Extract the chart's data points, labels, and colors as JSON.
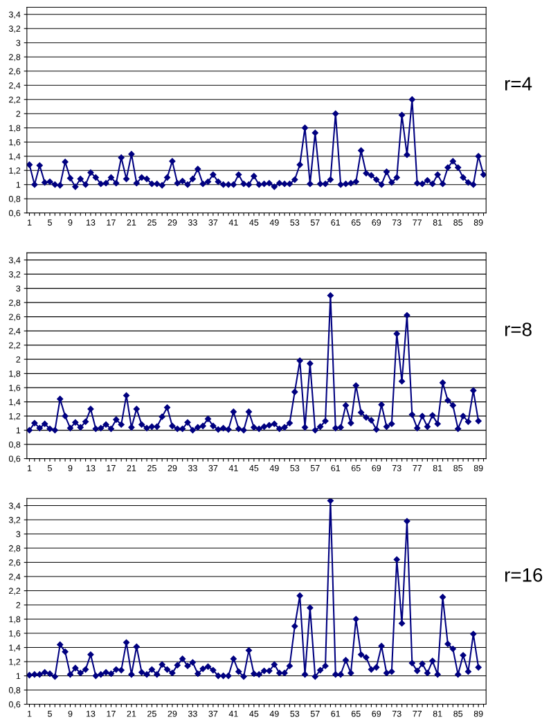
{
  "chart_data": [
    {
      "type": "line",
      "annotations": [
        "r=4"
      ],
      "categories": [
        "1",
        null,
        null,
        null,
        "5",
        null,
        null,
        null,
        "9",
        null,
        null,
        null,
        "13",
        null,
        null,
        null,
        "17",
        null,
        null,
        null,
        "21",
        null,
        null,
        null,
        "25",
        null,
        null,
        null,
        "29",
        null,
        null,
        null,
        "33",
        null,
        null,
        null,
        "37",
        null,
        null,
        null,
        "41",
        null,
        null,
        null,
        "45",
        null,
        null,
        null,
        "49",
        null,
        null,
        null,
        "53",
        null,
        null,
        null,
        "57",
        null,
        null,
        null,
        "61",
        null,
        null,
        null,
        "65",
        null,
        null,
        null,
        "69",
        null,
        null,
        null,
        "73",
        null,
        null,
        null,
        "77",
        null,
        null,
        null,
        "81",
        null,
        null,
        null,
        "85",
        null,
        null,
        null,
        "89",
        null
      ],
      "series": [
        {
          "color": "#000080",
          "values": [
            1.28,
            1.0,
            1.27,
            1.03,
            1.04,
            1.0,
            0.99,
            1.32,
            1.09,
            0.97,
            1.08,
            1.0,
            1.17,
            1.1,
            1.01,
            1.02,
            1.1,
            1.02,
            1.38,
            1.08,
            1.43,
            1.02,
            1.1,
            1.08,
            1.01,
            1.01,
            0.99,
            1.1,
            1.33,
            1.02,
            1.05,
            1.0,
            1.08,
            1.22,
            1.01,
            1.04,
            1.14,
            1.04,
            1.0,
            1.0,
            1.0,
            1.14,
            1.01,
            1.0,
            1.12,
            1.0,
            1.01,
            1.02,
            0.97,
            1.02,
            1.01,
            1.01,
            1.07,
            1.28,
            1.8,
            1.01,
            1.73,
            1.01,
            1.01,
            1.07,
            2.0,
            1.0,
            1.01,
            1.02,
            1.04,
            1.48,
            1.16,
            1.13,
            1.07,
            1.0,
            1.18,
            1.03,
            1.1,
            1.98,
            1.42,
            2.2,
            1.02,
            1.01,
            1.06,
            1.01,
            1.14,
            1.01,
            1.24,
            1.33,
            1.24,
            1.1,
            1.03,
            1.0,
            1.4,
            1.14
          ]
        }
      ],
      "ylim": [
        0.6,
        3.5
      ],
      "yticks": [
        {
          "value": 0.6,
          "label": "0,6"
        },
        {
          "value": 0.8,
          "label": "0,8"
        },
        1,
        {
          "value": 1.2,
          "label": "1,2"
        },
        {
          "value": 1.4,
          "label": "1,4"
        },
        {
          "value": 1.6,
          "label": "1,6"
        },
        {
          "value": 1.8,
          "label": "1,8"
        },
        2,
        {
          "value": 2.2,
          "label": "2,2"
        },
        {
          "value": 2.4,
          "label": "2,4"
        },
        {
          "value": 2.6,
          "label": "2,6"
        },
        {
          "value": 2.8,
          "label": "2,8"
        },
        3,
        {
          "value": 3.2,
          "label": "3,2"
        },
        {
          "value": 3.4,
          "label": "3,4"
        }
      ],
      "grid": "y",
      "marker": "diamond",
      "line_style": "solid"
    },
    {
      "type": "line",
      "annotations": [
        "r=8"
      ],
      "categories": [
        "1",
        null,
        null,
        null,
        "5",
        null,
        null,
        null,
        "9",
        null,
        null,
        null,
        "13",
        null,
        null,
        null,
        "17",
        null,
        null,
        null,
        "21",
        null,
        null,
        null,
        "25",
        null,
        null,
        null,
        "29",
        null,
        null,
        null,
        "33",
        null,
        null,
        null,
        "37",
        null,
        null,
        null,
        "41",
        null,
        null,
        null,
        "45",
        null,
        null,
        null,
        "49",
        null,
        null,
        null,
        "53",
        null,
        null,
        null,
        "57",
        null,
        null,
        null,
        "61",
        null,
        null,
        null,
        "65",
        null,
        null,
        null,
        "69",
        null,
        null,
        null,
        "73",
        null,
        null,
        null,
        "77",
        null,
        null,
        null,
        "81",
        null,
        null,
        null,
        "85",
        null,
        null,
        null,
        "89",
        null
      ],
      "series": [
        {
          "color": "#000080",
          "values": [
            1.0,
            1.1,
            1.03,
            1.09,
            1.02,
            1.0,
            1.44,
            1.2,
            1.03,
            1.11,
            1.04,
            1.12,
            1.3,
            1.02,
            1.03,
            1.08,
            1.02,
            1.15,
            1.08,
            1.49,
            1.04,
            1.3,
            1.08,
            1.03,
            1.05,
            1.05,
            1.19,
            1.32,
            1.06,
            1.02,
            1.02,
            1.11,
            1.0,
            1.04,
            1.06,
            1.16,
            1.06,
            1.01,
            1.03,
            1.01,
            1.26,
            1.02,
            1.0,
            1.26,
            1.04,
            1.02,
            1.05,
            1.07,
            1.09,
            1.02,
            1.04,
            1.1,
            1.54,
            1.98,
            1.04,
            1.94,
            1.0,
            1.05,
            1.13,
            2.9,
            1.03,
            1.04,
            1.35,
            1.1,
            1.63,
            1.25,
            1.18,
            1.14,
            1.01,
            1.36,
            1.05,
            1.09,
            2.36,
            1.69,
            2.62,
            1.22,
            1.03,
            1.2,
            1.05,
            1.21,
            1.09,
            1.67,
            1.42,
            1.35,
            1.02,
            1.2,
            1.12,
            1.56,
            1.13,
            null
          ]
        }
      ],
      "ylim": [
        0.6,
        3.5
      ],
      "yticks": [
        {
          "value": 0.6,
          "label": "0,6"
        },
        {
          "value": 0.8,
          "label": "0,8"
        },
        1,
        {
          "value": 1.2,
          "label": "1,2"
        },
        {
          "value": 1.4,
          "label": "1,4"
        },
        {
          "value": 1.6,
          "label": "1,6"
        },
        {
          "value": 1.8,
          "label": "1,8"
        },
        2,
        {
          "value": 2.2,
          "label": "2,2"
        },
        {
          "value": 2.4,
          "label": "2,4"
        },
        {
          "value": 2.6,
          "label": "2,6"
        },
        {
          "value": 2.8,
          "label": "2,8"
        },
        3,
        {
          "value": 3.2,
          "label": "3,2"
        },
        {
          "value": 3.4,
          "label": "3,4"
        }
      ],
      "grid": "y",
      "marker": "diamond",
      "line_style": "solid"
    },
    {
      "type": "line",
      "annotations": [
        "r=16"
      ],
      "categories": [
        "1",
        null,
        null,
        null,
        "5",
        null,
        null,
        null,
        "9",
        null,
        null,
        null,
        "13",
        null,
        null,
        null,
        "17",
        null,
        null,
        null,
        "21",
        null,
        null,
        null,
        "25",
        null,
        null,
        null,
        "29",
        null,
        null,
        null,
        "33",
        null,
        null,
        null,
        "37",
        null,
        null,
        null,
        "41",
        null,
        null,
        null,
        "45",
        null,
        null,
        null,
        "49",
        null,
        null,
        null,
        "53",
        null,
        null,
        null,
        "57",
        null,
        null,
        null,
        "61",
        null,
        null,
        null,
        "65",
        null,
        null,
        null,
        "69",
        null,
        null,
        null,
        "73",
        null,
        null,
        null,
        "77",
        null,
        null,
        null,
        "81",
        null,
        null,
        null,
        "85",
        null,
        null,
        null,
        "89",
        null
      ],
      "series": [
        {
          "color": "#000080",
          "values": [
            1.01,
            1.02,
            1.02,
            1.05,
            1.03,
            0.99,
            1.44,
            1.34,
            1.02,
            1.11,
            1.04,
            1.09,
            1.3,
            1.0,
            1.02,
            1.05,
            1.03,
            1.09,
            1.08,
            1.47,
            1.02,
            1.41,
            1.05,
            1.02,
            1.09,
            1.02,
            1.16,
            1.09,
            1.04,
            1.15,
            1.24,
            1.14,
            1.19,
            1.03,
            1.1,
            1.13,
            1.08,
            1.0,
            1.0,
            1.0,
            1.24,
            1.06,
            0.99,
            1.36,
            1.03,
            1.02,
            1.07,
            1.07,
            1.16,
            1.04,
            1.04,
            1.14,
            1.7,
            2.13,
            1.02,
            1.96,
            0.99,
            1.08,
            1.14,
            3.47,
            1.02,
            1.02,
            1.22,
            1.04,
            1.8,
            1.3,
            1.26,
            1.09,
            1.12,
            1.42,
            1.04,
            1.06,
            2.64,
            1.74,
            3.18,
            1.18,
            1.07,
            1.17,
            1.04,
            1.21,
            1.02,
            2.11,
            1.45,
            1.38,
            1.02,
            1.29,
            1.06,
            1.59,
            1.12,
            null
          ]
        }
      ],
      "ylim": [
        0.6,
        3.5
      ],
      "yticks": [
        {
          "value": 0.6,
          "label": "0,6"
        },
        {
          "value": 0.8,
          "label": "0,8"
        },
        1,
        {
          "value": 1.2,
          "label": "1,2"
        },
        {
          "value": 1.4,
          "label": "1,4"
        },
        {
          "value": 1.6,
          "label": "1,6"
        },
        {
          "value": 1.8,
          "label": "1,8"
        },
        2,
        {
          "value": 2.2,
          "label": "2,2"
        },
        {
          "value": 2.4,
          "label": "2,4"
        },
        {
          "value": 2.6,
          "label": "2,6"
        },
        {
          "value": 2.8,
          "label": "2,8"
        },
        3,
        {
          "value": 3.2,
          "label": "3,2"
        },
        {
          "value": 3.4,
          "label": "3,4"
        }
      ],
      "grid": "y",
      "marker": "diamond",
      "line_style": "solid"
    }
  ]
}
